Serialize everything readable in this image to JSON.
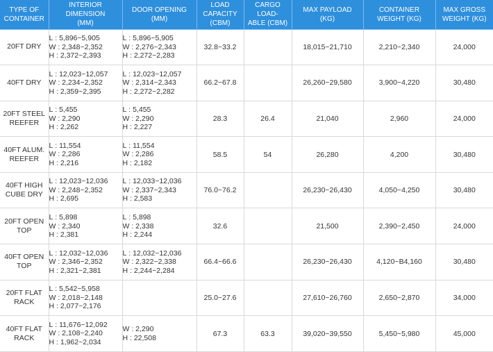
{
  "headers": [
    "TYPE OF\nCONTAINER",
    "INTERIOR DIMENSION\n(MM)",
    "DOOR OPENING\n(MM)",
    "LOAD CAPACITY\n(CBM)",
    "CARGO LOAD-\nABLE (CBM)",
    "MAX PAYLOAD\n(KG)",
    "CONTAINER\nWEIGHT (KG)",
    "MAX GROSS\nWEIGHT (KG)"
  ],
  "rows": [
    {
      "type": "20FT DRY",
      "interior": [
        "L : 5,896~5,905",
        "W : 2,348~2,352",
        "H : 2,372~2,393"
      ],
      "door": [
        "L : 5,896~5,905",
        "W : 2,276~2,343",
        "H : 2,272~2,283"
      ],
      "load_capacity": "32.8~33.2",
      "cargo_loadable": "",
      "max_payload": "18,015~21,710",
      "container_weight": "2,210~2,340",
      "max_gross": "24,000"
    },
    {
      "type": "40FT DRY",
      "interior": [
        "L : 12,023~12,057",
        "W : 2,234~2,352",
        "H : 2,359~2,395"
      ],
      "door": [
        "L : 12,023~12,057",
        "W : 2,314~2,343",
        "H : 2,272~2,282"
      ],
      "load_capacity": "66.2~67.8",
      "cargo_loadable": "",
      "max_payload": "26,260~29,580",
      "container_weight": "3,900~4,220",
      "max_gross": "30,480"
    },
    {
      "type": "20FT STEEL\nREEFER",
      "interior": [
        "L : 5,455",
        "W : 2,290",
        "H : 2,262"
      ],
      "door": [
        "L : 5,455",
        "W : 2,290",
        "H : 2,227"
      ],
      "load_capacity": "28.3",
      "cargo_loadable": "26.4",
      "max_payload": "21,040",
      "container_weight": "2,960",
      "max_gross": "24,000"
    },
    {
      "type": "40FT ALUM.\nREEFER",
      "interior": [
        "L : 11,554",
        "W : 2,286",
        "H : 2,216"
      ],
      "door": [
        "L : 11,554",
        "W : 2,286",
        "H : 2,182"
      ],
      "load_capacity": "58.5",
      "cargo_loadable": "54",
      "max_payload": "26,280",
      "container_weight": "4,200",
      "max_gross": "30,480"
    },
    {
      "type": "40FT HIGH\nCUBE DRY",
      "interior": [
        "L : 12,023~12,036",
        "W : 2,248~2,352",
        "H : 2,695"
      ],
      "door": [
        "L : 12,033~12,036",
        "W : 2,337~2,343",
        "H : 2,583"
      ],
      "load_capacity": "76.0~76.2",
      "cargo_loadable": "",
      "max_payload": "26,230~26,430",
      "container_weight": "4,050~4,250",
      "max_gross": "30,480"
    },
    {
      "type": "20FT OPEN\nTOP",
      "interior": [
        "L : 5,898",
        "W : 2,340",
        "H : 2,381"
      ],
      "door": [
        "L : 5,898",
        "W : 2,338",
        "H : 2,244"
      ],
      "load_capacity": "32.6",
      "cargo_loadable": "",
      "max_payload": "21,500",
      "container_weight": "2,390~2,450",
      "max_gross": "24,000"
    },
    {
      "type": "40FT OPEN\nTOP",
      "interior": [
        "L : 12,032~12,036",
        "W : 2,346~2,352",
        "H : 2,321~2,381"
      ],
      "door": [
        "L : 12,032~12,036",
        "W : 2,322~2,338",
        "H : 2,244~2,284"
      ],
      "load_capacity": "66.4~66.6",
      "cargo_loadable": "",
      "max_payload": "26,230~26,430",
      "container_weight": "4,120~B4,160",
      "max_gross": "30,480"
    },
    {
      "type": "20FT FLAT\nRACK",
      "interior": [
        "L : 5,542~5,958",
        "W : 2,018~2,148",
        "H : 2,077~2,176"
      ],
      "door": [],
      "load_capacity": "25.0~27.6",
      "cargo_loadable": "",
      "max_payload": "27,610~26,760",
      "container_weight": "2,650~2,870",
      "max_gross": "34,000"
    },
    {
      "type": "40FT FLAT\nRACK",
      "interior": [
        "L : 11,676~12,092",
        "W : 2,108~2,240",
        "H : 1,962~2,034"
      ],
      "door": [
        "W : 2,290",
        "H : 22,508"
      ],
      "load_capacity": "67.3",
      "cargo_loadable": "63.3",
      "max_payload": "39,020~39,550",
      "container_weight": "5,450~5,980",
      "max_gross": "45,000"
    }
  ]
}
